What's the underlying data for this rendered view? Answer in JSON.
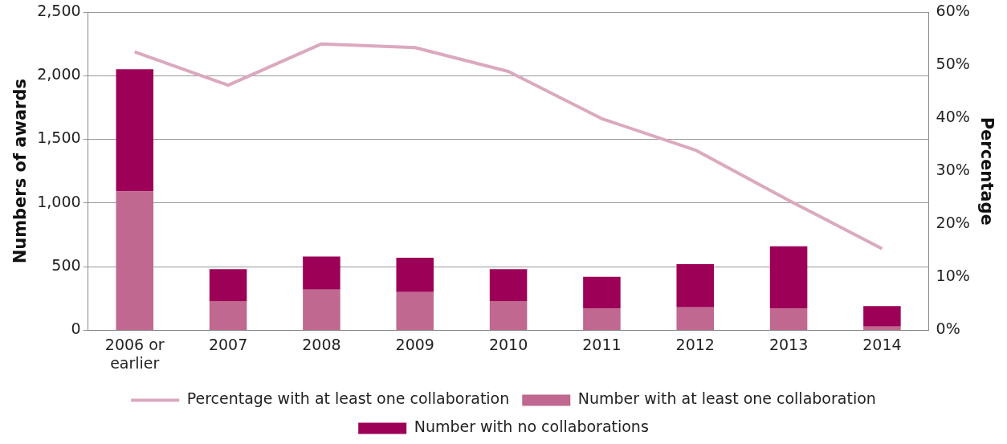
{
  "chart_data": {
    "type": "bar",
    "stacked": true,
    "categories": [
      "2006 or earlier",
      "2007",
      "2008",
      "2009",
      "2010",
      "2011",
      "2012",
      "2013",
      "2014"
    ],
    "series": [
      {
        "name": "Number with at least one collaboration",
        "color": "#c0688f",
        "values": [
          1090,
          230,
          320,
          300,
          230,
          170,
          180,
          170,
          30
        ]
      },
      {
        "name": "Number with no collaborations",
        "color": "#9c0057",
        "values": [
          960,
          250,
          260,
          270,
          250,
          250,
          340,
          490,
          160
        ]
      },
      {
        "name": "Percentage with at least one collaboration",
        "type": "line",
        "axis": "y2",
        "color": "#dba9bf",
        "marker": "none",
        "values": [
          52.5,
          46.2,
          54.0,
          53.3,
          48.8,
          39.9,
          34.0,
          24.5,
          15.4
        ]
      }
    ],
    "ylabel": "Numbers of awards",
    "y2label": "Percentage",
    "ylim": [
      0,
      2500
    ],
    "yticks": [
      {
        "value": 0,
        "label": "0"
      },
      {
        "value": 500,
        "label": "500"
      },
      {
        "value": 1000,
        "label": "1,000"
      },
      {
        "value": 1500,
        "label": "1,500"
      },
      {
        "value": 2000,
        "label": "2,000"
      },
      {
        "value": 2500,
        "label": "2,500"
      }
    ],
    "y2lim": [
      0,
      60
    ],
    "y2ticks": [
      {
        "value": 0,
        "label": "0%"
      },
      {
        "value": 10,
        "label": "10%"
      },
      {
        "value": 20,
        "label": "20%"
      },
      {
        "value": 30,
        "label": "30%"
      },
      {
        "value": 40,
        "label": "40%"
      },
      {
        "value": 50,
        "label": "50%"
      },
      {
        "value": 60,
        "label": "60%"
      }
    ],
    "grid": "y",
    "legend": "bottom"
  }
}
